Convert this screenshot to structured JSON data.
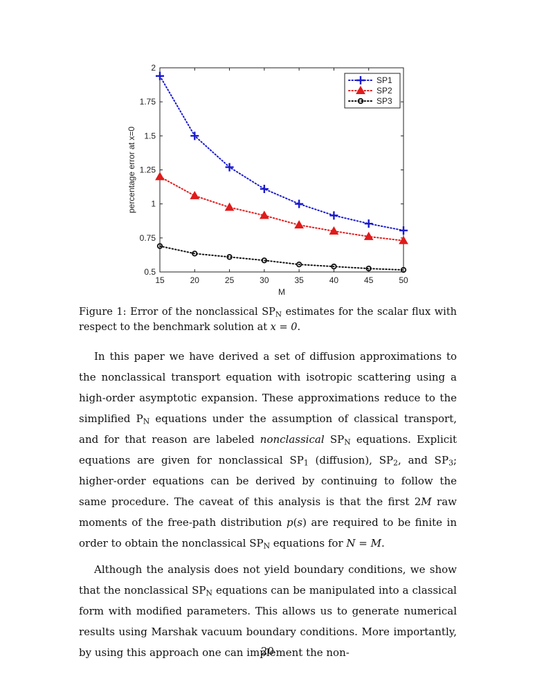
{
  "chart_data": {
    "type": "line",
    "xlabel": "M",
    "ylabel": "percentage error at x=0",
    "x": [
      15,
      20,
      25,
      30,
      35,
      40,
      45,
      50
    ],
    "xlim": [
      15,
      50
    ],
    "ylim": [
      0.5,
      2
    ],
    "xticks": [
      "15",
      "20",
      "25",
      "30",
      "35",
      "40",
      "45",
      "50"
    ],
    "yticks": [
      "0.5",
      "0.75",
      "1",
      "1.25",
      "1.5",
      "1.75",
      "2"
    ],
    "grid": false,
    "legend_position": "top-right",
    "series": [
      {
        "name": "SP1",
        "color": "#1a1acc",
        "marker": "plus",
        "values": [
          1.94,
          1.5,
          1.27,
          1.11,
          1.0,
          0.915,
          0.855,
          0.805
        ]
      },
      {
        "name": "SP2",
        "color": "#e01b1b",
        "marker": "triangle",
        "values": [
          1.2,
          1.06,
          0.975,
          0.915,
          0.845,
          0.8,
          0.76,
          0.73
        ]
      },
      {
        "name": "SP3",
        "color": "#111111",
        "marker": "circle",
        "values": [
          0.69,
          0.635,
          0.61,
          0.585,
          0.555,
          0.54,
          0.525,
          0.515
        ]
      }
    ]
  },
  "caption": {
    "prefix": "Figure 1: Error of the nonclassical SP",
    "sub_n": "N",
    "middle": " estimates for the scalar flux with respect to the benchmark solution at ",
    "math": "x = 0",
    "end": "."
  },
  "paragraph1": {
    "s1": "In this paper we have derived a set of diffusion approximations to the nonclassical transport equation with isotropic scattering using a high-order asymptotic expansion. These approximations reduce to the simplified P",
    "sub1": "N",
    "s2": " equations under the assumption of classical transport, and for that reason are labeled ",
    "em": "nonclassical",
    "s3": " SP",
    "sub2": "N",
    "s4": " equations. Explicit equations are given for nonclassical SP",
    "sub3": "1",
    "s5": " (diffusion), SP",
    "sub4": "2",
    "s6": ", and SP",
    "sub5": "3",
    "s7": "; higher-order equations can be derived by continuing to follow the same procedure. The caveat of this analysis is that the first 2",
    "m1": "M",
    "s8": " raw moments of the free-path distribution ",
    "m2": "p",
    "s9": "(",
    "m3": "s",
    "s10": ") are required to be finite in order to obtain the nonclassical SP",
    "sub6": "N",
    "s11": " equations for ",
    "m4": "N",
    "s12": " = ",
    "m5": "M",
    "s13": "."
  },
  "paragraph2": {
    "s1": "Although the analysis does not yield boundary conditions, we show that the nonclassical SP",
    "sub1": "N",
    "s2": " equations can be manipulated into a classical form with modified parameters. This allows us to generate numerical results using Marshak vacuum boundary conditions. More importantly, by using this approach one can implement the non-"
  },
  "page_number": "20"
}
